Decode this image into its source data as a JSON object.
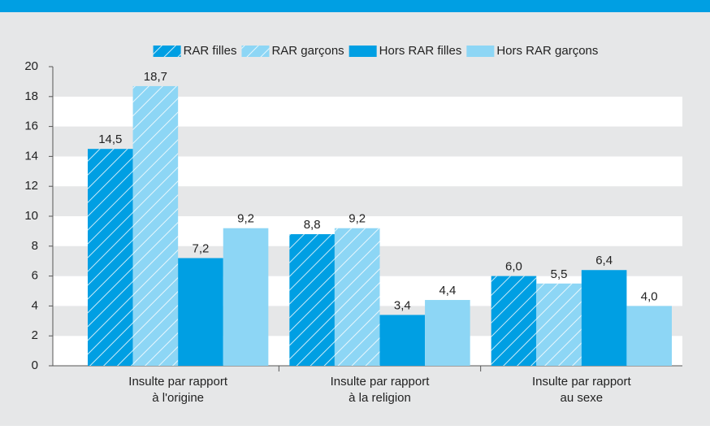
{
  "chart_data": {
    "type": "bar",
    "categories": [
      [
        "Insulte par rapport",
        "à l'origine"
      ],
      [
        "Insulte par rapport",
        "à la religion"
      ],
      [
        "Insulte par rapport",
        "au sexe"
      ]
    ],
    "series": [
      {
        "name": "RAR filles",
        "color": "#009fe3",
        "pattern": "hatch",
        "values": [
          14.5,
          8.8,
          6.0
        ],
        "value_labels": [
          "14,5",
          "8,8",
          "6,0"
        ]
      },
      {
        "name": "RAR garçons",
        "color": "#8dd6f5",
        "pattern": "hatch",
        "values": [
          18.7,
          9.2,
          5.5
        ],
        "value_labels": [
          "18,7",
          "9,2",
          "5,5"
        ]
      },
      {
        "name": "Hors RAR filles",
        "color": "#009fe3",
        "values": [
          7.2,
          3.4,
          6.4
        ],
        "value_labels": [
          "7,2",
          "3,4",
          "6,4"
        ]
      },
      {
        "name": "Hors RAR garçons",
        "color": "#8dd6f5",
        "values": [
          9.2,
          4.4,
          4.0
        ],
        "value_labels": [
          "9,2",
          "4,4",
          "4,0"
        ]
      }
    ],
    "ylim": [
      0,
      20
    ],
    "yticks": [
      0,
      2,
      4,
      6,
      8,
      10,
      12,
      14,
      16,
      18,
      20
    ],
    "grid": true,
    "legend": "top"
  }
}
